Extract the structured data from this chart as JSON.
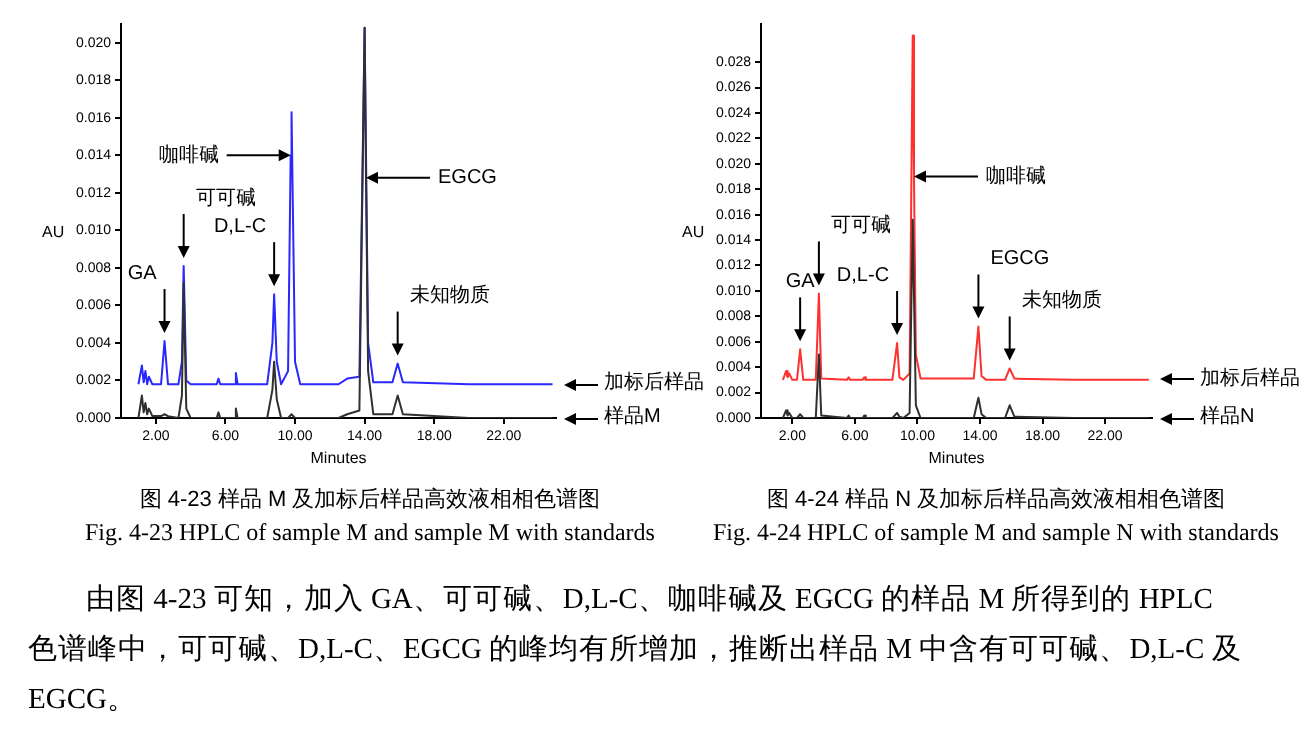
{
  "chart_data": [
    {
      "type": "line",
      "title": "图 4-23  样品 M 及加标后样品高效液相相色谱图",
      "subtitle": "Fig. 4-23 HPLC of sample M and sample M with standards",
      "xlabel": "Minutes",
      "ylabel": "AU",
      "xlim": [
        0,
        25
      ],
      "xticks": [
        {
          "value": 2,
          "label": "2.00"
        },
        {
          "value": 6,
          "label": "6.00"
        },
        {
          "value": 10,
          "label": "10.00"
        },
        {
          "value": 14,
          "label": "14.00"
        },
        {
          "value": 18,
          "label": "18.00"
        },
        {
          "value": 22,
          "label": "22.00"
        }
      ],
      "ylim": [
        0,
        0.021
      ],
      "yticks": [
        {
          "value": 0,
          "label": "0.000"
        },
        {
          "value": 0.002,
          "label": "0.002"
        },
        {
          "value": 0.004,
          "label": "0.004"
        },
        {
          "value": 0.006,
          "label": "0.006"
        },
        {
          "value": 0.008,
          "label": "0.008"
        },
        {
          "value": 0.01,
          "label": "0.010"
        },
        {
          "value": 0.012,
          "label": "0.012"
        },
        {
          "value": 0.014,
          "label": "0.014"
        },
        {
          "value": 0.016,
          "label": "0.016"
        },
        {
          "value": 0.018,
          "label": "0.018"
        },
        {
          "value": 0.02,
          "label": "0.020"
        }
      ],
      "grid": false,
      "legend": false,
      "marker": "none",
      "line_style": "solid",
      "series": [
        {
          "name": "加标后样品",
          "color": "#2828ff",
          "x": [
            1.0,
            1.2,
            1.3,
            1.4,
            1.5,
            1.6,
            1.8,
            2.3,
            2.5,
            2.7,
            3.3,
            3.5,
            3.6,
            3.75,
            4.0,
            5.5,
            5.6,
            5.7,
            6.5,
            6.6,
            6.7,
            8.4,
            8.7,
            8.8,
            8.95,
            9.2,
            9.6,
            9.75,
            9.8,
            10.0,
            10.3,
            12.5,
            13.0,
            13.7,
            14.0,
            14.2,
            14.5,
            15.6,
            15.9,
            16.2,
            20,
            24.8
          ],
          "values": [
            0.0018,
            0.0028,
            0.0019,
            0.0025,
            0.0018,
            0.0022,
            0.0018,
            0.0018,
            0.0041,
            0.0018,
            0.0018,
            0.003,
            0.0081,
            0.002,
            0.0018,
            0.0018,
            0.0021,
            0.0018,
            0.0018,
            0.0024,
            0.0018,
            0.0018,
            0.004,
            0.0066,
            0.003,
            0.0018,
            0.0025,
            0.014,
            0.0163,
            0.003,
            0.0018,
            0.0018,
            0.0021,
            0.0022,
            0.0208,
            0.004,
            0.0019,
            0.0019,
            0.0029,
            0.0019,
            0.0018,
            0.0018
          ]
        },
        {
          "name": "样品M",
          "color": "#303030",
          "x": [
            1.0,
            1.2,
            1.3,
            1.4,
            1.5,
            1.6,
            1.8,
            2.3,
            2.5,
            2.7,
            3.3,
            3.5,
            3.6,
            3.75,
            4.0,
            5.5,
            5.6,
            5.7,
            6.5,
            6.6,
            6.7,
            8.4,
            8.7,
            8.8,
            8.95,
            9.2,
            9.6,
            9.8,
            10.0,
            10.3,
            12.5,
            13.0,
            13.7,
            14.0,
            14.08,
            14.2,
            14.5,
            15.6,
            15.9,
            16.2,
            20,
            24.8
          ],
          "values": [
            0,
            0.0012,
            0.0003,
            0.0008,
            0.0002,
            0.0005,
            0.0001,
            0.0001,
            0.0002,
            0.0001,
            0,
            0.0012,
            0.0072,
            0.0005,
            0,
            0,
            0.0003,
            0,
            0,
            0.0005,
            0,
            0,
            0.0015,
            0.003,
            0.001,
            0,
            0,
            0.0002,
            0,
            0,
            0,
            0.0002,
            0.0004,
            0.0208,
            0.0128,
            0.0025,
            0.0002,
            0.0002,
            0.0012,
            0.0002,
            0,
            0
          ]
        }
      ],
      "annotations": [
        {
          "text": "GA",
          "x": 2.5,
          "y": 0.0041
        },
        {
          "text": "可可碱",
          "x": 3.6,
          "y": 0.0081
        },
        {
          "text": "D,L-C",
          "x": 8.8,
          "y": 0.0066
        },
        {
          "text": "咖啡碱",
          "x": 9.75,
          "y": 0.014
        },
        {
          "text": "EGCG",
          "x": 14.08,
          "y": 0.0128
        },
        {
          "text": "未知物质",
          "x": 15.9,
          "y": 0.0029
        }
      ]
    },
    {
      "type": "line",
      "title": "图 4-24  样品 N 及加标后样品高效液相相色谱图",
      "subtitle": "Fig. 4-24 HPLC of sample M and sample N with standards",
      "xlabel": "Minutes",
      "ylabel": "AU",
      "xlim": [
        0,
        25
      ],
      "xticks": [
        {
          "value": 2,
          "label": "2.00"
        },
        {
          "value": 6,
          "label": "6.00"
        },
        {
          "value": 10,
          "label": "10.00"
        },
        {
          "value": 14,
          "label": "14.00"
        },
        {
          "value": 18,
          "label": "18.00"
        },
        {
          "value": 22,
          "label": "22.00"
        }
      ],
      "ylim": [
        0,
        0.031
      ],
      "yticks": [
        {
          "value": 0,
          "label": "0.000"
        },
        {
          "value": 0.002,
          "label": "0.002"
        },
        {
          "value": 0.004,
          "label": "0.004"
        },
        {
          "value": 0.006,
          "label": "0.006"
        },
        {
          "value": 0.008,
          "label": "0.008"
        },
        {
          "value": 0.01,
          "label": "0.010"
        },
        {
          "value": 0.012,
          "label": "0.012"
        },
        {
          "value": 0.014,
          "label": "0.014"
        },
        {
          "value": 0.016,
          "label": "0.016"
        },
        {
          "value": 0.018,
          "label": "0.018"
        },
        {
          "value": 0.02,
          "label": "0.020"
        },
        {
          "value": 0.022,
          "label": "0.022"
        },
        {
          "value": 0.024,
          "label": "0.024"
        },
        {
          "value": 0.026,
          "label": "0.026"
        },
        {
          "value": 0.028,
          "label": "0.028"
        }
      ],
      "grid": false,
      "legend": false,
      "marker": "none",
      "line_style": "solid",
      "series": [
        {
          "name": "加标后样品",
          "color": "#ff3030",
          "x": [
            1.4,
            1.6,
            1.7,
            1.8,
            2.0,
            2.3,
            2.5,
            2.7,
            3.5,
            3.7,
            3.85,
            5.5,
            5.6,
            5.7,
            6.5,
            6.6,
            6.7,
            8.4,
            8.7,
            8.85,
            9.1,
            9.5,
            9.7,
            9.78,
            9.9,
            10.2,
            13.6,
            13.9,
            14.1,
            14.4,
            15.6,
            15.9,
            16.2,
            20,
            24.8
          ],
          "values": [
            0.003,
            0.0037,
            0.0032,
            0.0035,
            0.003,
            0.003,
            0.0054,
            0.003,
            0.003,
            0.0098,
            0.0031,
            0.003,
            0.0032,
            0.003,
            0.003,
            0.0032,
            0.003,
            0.003,
            0.0059,
            0.0032,
            0.003,
            0.0035,
            0.0301,
            0.019,
            0.005,
            0.0031,
            0.0031,
            0.0072,
            0.0033,
            0.003,
            0.003,
            0.0039,
            0.0031,
            0.003,
            0.003
          ]
        },
        {
          "name": "样品N",
          "color": "#303030",
          "x": [
            1.4,
            1.6,
            1.7,
            1.8,
            2.0,
            2.3,
            2.5,
            2.7,
            3.5,
            3.7,
            3.85,
            5.5,
            5.6,
            5.7,
            6.5,
            6.6,
            6.7,
            8.4,
            8.7,
            8.85,
            9.1,
            9.5,
            9.7,
            9.9,
            10.2,
            13.6,
            13.9,
            14.1,
            14.4,
            15.6,
            15.9,
            16.2,
            20,
            24.8
          ],
          "values": [
            0,
            0.0006,
            0.0002,
            0.0004,
            0,
            0,
            0.0003,
            0,
            0,
            0.005,
            0.0002,
            0,
            0.0002,
            0,
            0,
            0.0002,
            0,
            0,
            0.0004,
            0.0001,
            0,
            0.0004,
            0.0156,
            0.001,
            0,
            0,
            0.0016,
            0.0003,
            0,
            0,
            0.001,
            0.0001,
            0,
            0
          ]
        }
      ],
      "annotations": [
        {
          "text": "GA",
          "x": 2.5,
          "y": 0.0054
        },
        {
          "text": "可可碱",
          "x": 3.7,
          "y": 0.0098
        },
        {
          "text": "D,L-C",
          "x": 8.7,
          "y": 0.0059
        },
        {
          "text": "咖啡碱",
          "x": 9.78,
          "y": 0.019
        },
        {
          "text": "EGCG",
          "x": 13.9,
          "y": 0.0072
        },
        {
          "text": "未知物质",
          "x": 15.9,
          "y": 0.0039
        },
        "由图 4-23 可知，加入 GA、可可碱、D,L-C、咖啡碱及 EGCG 的样品 M 所得到的 HPLC 色谱峰中，可可碱、D,L-C、EGCG 的峰均有所增加，推断出样品 M 中含有可可碱、D,L-C 及 EGCG。"
      ]
    }
  ]
}
